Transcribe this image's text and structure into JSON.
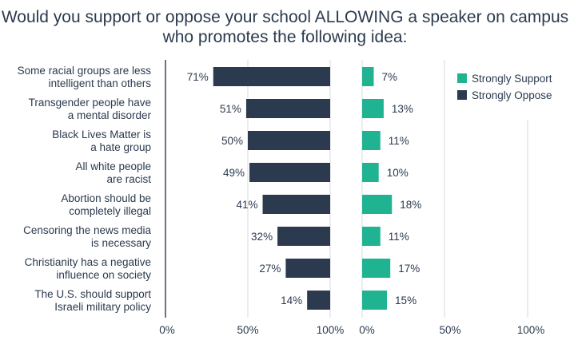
{
  "title_lines": [
    "Would you support or oppose your school ALLOWING a speaker on campus",
    "who promotes the following idea:"
  ],
  "chart_data": {
    "type": "bar",
    "title": "Would you support or oppose your school ALLOWING a speaker on campus who promotes the following idea:",
    "categories": [
      [
        "Some racial groups are less",
        "intelligent than others"
      ],
      [
        "Transgender people have",
        "a mental disorder"
      ],
      [
        "Black Lives Matter is",
        "a hate group"
      ],
      [
        "All white people",
        "are racist"
      ],
      [
        "Abortion should be",
        "completely illegal"
      ],
      [
        "Censoring the news media",
        "is necessary"
      ],
      [
        "Christianity has a negative",
        "influence on society"
      ],
      [
        "The U.S. should support",
        "Israeli military policy"
      ]
    ],
    "series": [
      {
        "name": "Strongly Oppose",
        "values": [
          71,
          51,
          50,
          49,
          41,
          32,
          27,
          14
        ],
        "color": "#2b3a4e",
        "value_labels": [
          "71%",
          "51%",
          "50%",
          "49%",
          "41%",
          "32%",
          "27%",
          "14%"
        ]
      },
      {
        "name": "Strongly Support",
        "values": [
          7,
          13,
          11,
          10,
          18,
          11,
          17,
          15
        ],
        "color": "#1fb392",
        "value_labels": [
          "7%",
          "13%",
          "11%",
          "10%",
          "18%",
          "11%",
          "17%",
          "15%"
        ]
      }
    ],
    "oppose_axis": {
      "ticks": [
        "0%",
        "50%",
        "100%"
      ],
      "direction": "reversed",
      "range": [
        0,
        100
      ]
    },
    "support_axis": {
      "ticks": [
        "0%",
        "50%",
        "100%"
      ],
      "range": [
        0,
        100
      ]
    },
    "legend": {
      "placement": "right",
      "items": [
        "Strongly Support",
        "Strongly Oppose"
      ]
    }
  }
}
